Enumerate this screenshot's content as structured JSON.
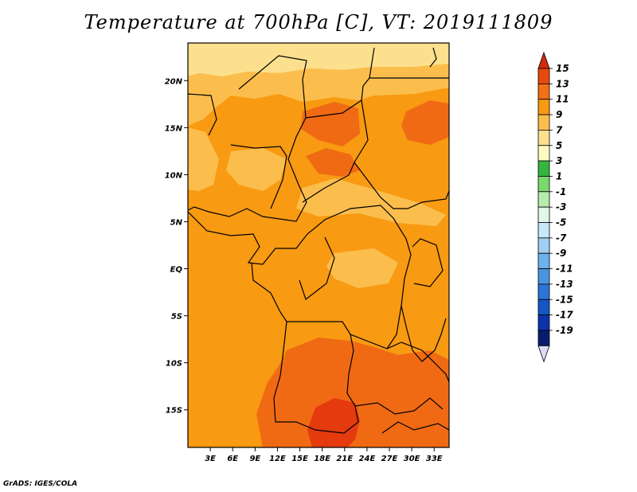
{
  "title": "Temperature at 700hPa [C], VT: 2019111809",
  "footer": "GrADS: IGES/COLA",
  "map": {
    "lat_range": [
      -19,
      24
    ],
    "lon_range": [
      0,
      35
    ],
    "lat_ticks": [
      {
        "value": 20,
        "label": "20N"
      },
      {
        "value": 15,
        "label": "15N"
      },
      {
        "value": 10,
        "label": "10N"
      },
      {
        "value": 5,
        "label": "5N"
      },
      {
        "value": 0,
        "label": "EQ"
      },
      {
        "value": -5,
        "label": "5S"
      },
      {
        "value": -10,
        "label": "10S"
      },
      {
        "value": -15,
        "label": "15S"
      }
    ],
    "lon_ticks": [
      {
        "value": 3,
        "label": "3E"
      },
      {
        "value": 6,
        "label": "6E"
      },
      {
        "value": 9,
        "label": "9E"
      },
      {
        "value": 12,
        "label": "12E"
      },
      {
        "value": 15,
        "label": "15E"
      },
      {
        "value": 18,
        "label": "18E"
      },
      {
        "value": 21,
        "label": "21E"
      },
      {
        "value": 24,
        "label": "24E"
      },
      {
        "value": 27,
        "label": "27E"
      },
      {
        "value": 30,
        "label": "30E"
      },
      {
        "value": 33,
        "label": "33E"
      }
    ],
    "colors": {
      "t5_7": "#fde08e",
      "t7_9": "#fbbe4d",
      "t9_11": "#f89a12",
      "t11_13": "#f06a14",
      "t13_15": "#e43a0e",
      "border": "#000000"
    }
  },
  "colorbar": {
    "labels": [
      "15",
      "13",
      "11",
      "9",
      "7",
      "5",
      "3",
      "1",
      "-1",
      "-3",
      "-5",
      "-7",
      "-9",
      "-11",
      "-13",
      "-15",
      "-17",
      "-19"
    ],
    "colors": [
      "#d22a0c",
      "#e84a0e",
      "#f27016",
      "#f89a12",
      "#fbbe4d",
      "#fde08e",
      "#fefcc0",
      "#35b53f",
      "#7bd86f",
      "#b6ecac",
      "#e2f7e6",
      "#c7e8f7",
      "#9fd0f3",
      "#6cb2ec",
      "#4a95e2",
      "#2c74d8",
      "#1556c4",
      "#0c34a8",
      "#081c6e",
      "#dcdcf8"
    ]
  }
}
